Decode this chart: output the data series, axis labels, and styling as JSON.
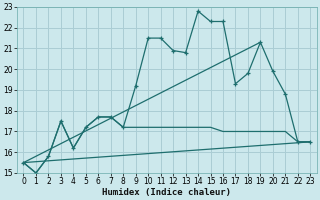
{
  "xlabel": "Humidex (Indice chaleur)",
  "bg_color": "#cce8ec",
  "grid_color": "#aacdd4",
  "line_color": "#1e6e6e",
  "xlim": [
    -0.5,
    23.5
  ],
  "ylim": [
    15,
    23
  ],
  "xticks": [
    0,
    1,
    2,
    3,
    4,
    5,
    6,
    7,
    8,
    9,
    10,
    11,
    12,
    13,
    14,
    15,
    16,
    17,
    18,
    19,
    20,
    21,
    22,
    23
  ],
  "yticks": [
    15,
    16,
    17,
    18,
    19,
    20,
    21,
    22,
    23
  ],
  "series": [
    {
      "x": [
        0,
        1,
        2,
        3,
        4,
        5,
        6,
        7,
        8,
        9,
        10,
        11,
        12,
        13,
        14,
        15,
        16,
        17,
        18,
        19,
        20,
        21,
        22,
        23
      ],
      "y": [
        15.5,
        15.0,
        15.8,
        17.5,
        16.2,
        17.2,
        17.7,
        17.7,
        17.2,
        19.2,
        21.5,
        21.5,
        20.9,
        20.8,
        22.8,
        22.3,
        22.3,
        19.3,
        19.8,
        21.3,
        19.9,
        18.8,
        16.5,
        16.5
      ],
      "marker": true
    },
    {
      "x": [
        0,
        1,
        2,
        3,
        4,
        5,
        6,
        7,
        8,
        9,
        10,
        11,
        12,
        13,
        14,
        15,
        16,
        17,
        18,
        19,
        20,
        21,
        22,
        23
      ],
      "y": [
        15.5,
        15.0,
        15.8,
        17.5,
        16.2,
        17.2,
        17.7,
        17.7,
        17.2,
        17.2,
        17.2,
        17.2,
        17.2,
        17.2,
        17.2,
        17.2,
        17.0,
        17.0,
        17.0,
        17.0,
        17.0,
        17.0,
        16.5,
        16.5
      ],
      "marker": false
    },
    {
      "x": [
        0,
        19
      ],
      "y": [
        15.5,
        21.3
      ],
      "marker": false
    },
    {
      "x": [
        0,
        23
      ],
      "y": [
        15.5,
        16.5
      ],
      "marker": false
    }
  ]
}
